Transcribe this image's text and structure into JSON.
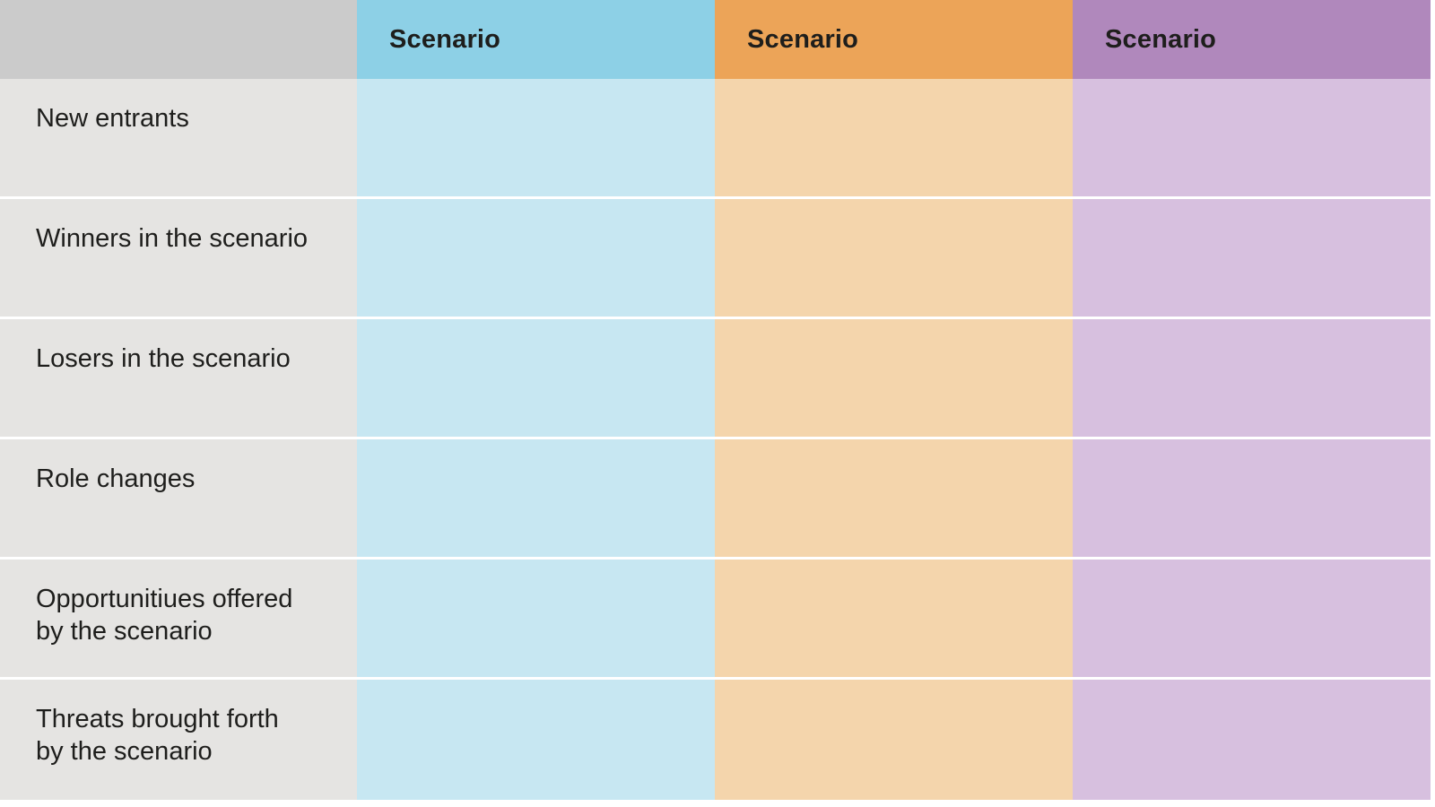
{
  "table": {
    "corner_label": "",
    "columns": [
      {
        "label": "Scenario",
        "header_color": "#8dd0e6",
        "body_color": "#c7e7f2"
      },
      {
        "label": "Scenario",
        "header_color": "#eca458",
        "body_color": "#f4d5ac"
      },
      {
        "label": "Scenario",
        "header_color": "#b088bc",
        "body_color": "#d7c0df"
      }
    ],
    "rows": [
      {
        "label": "New entrants"
      },
      {
        "label": "Winners in the scenario"
      },
      {
        "label": "Losers in the scenario"
      },
      {
        "label": "Role changes"
      },
      {
        "label": "Opportunitiues offered\nby the scenario"
      },
      {
        "label": "Threats brought forth\nby the scenario"
      }
    ],
    "cells_empty": true
  },
  "chart_data": {
    "type": "table",
    "title": "",
    "column_headers": [
      "",
      "Scenario",
      "Scenario",
      "Scenario"
    ],
    "row_headers": [
      "New entrants",
      "Winners in the scenario",
      "Losers in the scenario",
      "Role changes",
      "Opportunitiues offered by the scenario",
      "Threats brought forth by the scenario"
    ],
    "values": [
      [
        "",
        "",
        ""
      ],
      [
        "",
        "",
        ""
      ],
      [
        "",
        "",
        ""
      ],
      [
        "",
        "",
        ""
      ],
      [
        "",
        "",
        ""
      ],
      [
        "",
        "",
        ""
      ]
    ]
  },
  "colors": {
    "header_gray": "#cbcbcb",
    "header_blue": "#8dd0e6",
    "header_orange": "#eca458",
    "header_purple": "#b088bc",
    "body_gray": "#e5e4e2",
    "body_blue": "#c7e7f2",
    "body_orange": "#f4d5ac",
    "body_purple": "#d7c0df",
    "separator": "#ffffff",
    "text": "#1e1e1c"
  }
}
